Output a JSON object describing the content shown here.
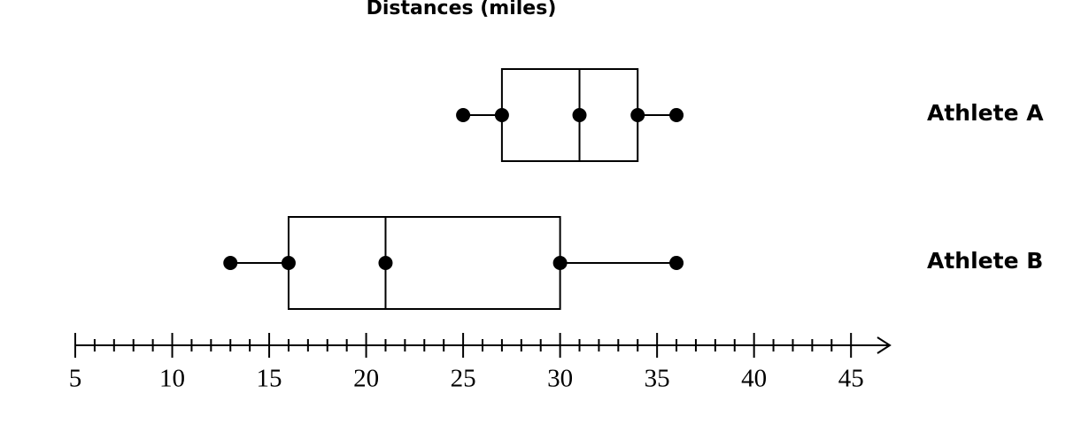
{
  "chart_data": {
    "type": "box",
    "title": "Distances (miles)",
    "categories": [
      "Athlete A",
      "Athlete B"
    ],
    "min": [
      25,
      13
    ],
    "q1": [
      27,
      16
    ],
    "median": [
      31,
      21
    ],
    "q3": [
      34,
      30
    ],
    "max": [
      36,
      36
    ],
    "color": "#000000",
    "xlim": [
      5,
      47
    ],
    "xticks": [
      5,
      10,
      15,
      20,
      25,
      30,
      35,
      40,
      45
    ],
    "minor_xticks": [
      6,
      7,
      8,
      9,
      11,
      12,
      13,
      14,
      16,
      17,
      18,
      19,
      21,
      22,
      23,
      24,
      26,
      27,
      28,
      29,
      31,
      32,
      33,
      34,
      36,
      37,
      38,
      39,
      41,
      42,
      43,
      44
    ]
  }
}
